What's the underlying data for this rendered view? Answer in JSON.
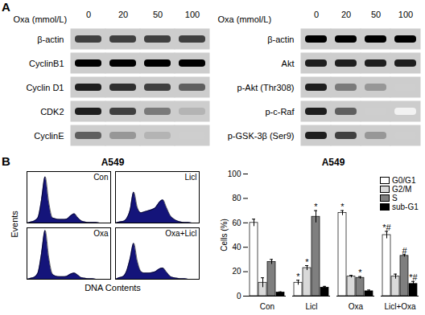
{
  "panel_labels": [
    "A",
    "B"
  ],
  "blots": [
    {
      "header": "Oxa (mmol/L)",
      "lanes": [
        0,
        20,
        50,
        100
      ],
      "rows": [
        {
          "label": "β-actin",
          "intensity": [
            0.8,
            0.8,
            0.8,
            0.8
          ]
        },
        {
          "label": "CyclinB1",
          "intensity": [
            1,
            1,
            1,
            1
          ]
        },
        {
          "label": "Cyclin D1",
          "intensity": [
            0.9,
            0.85,
            0.8,
            0.7
          ]
        },
        {
          "label": "CDK2",
          "intensity": [
            0.9,
            0.8,
            0.6,
            0.4
          ]
        },
        {
          "label": "CyclinE",
          "intensity": [
            0.7,
            0.5,
            0.4,
            0.3
          ]
        }
      ]
    },
    {
      "header": "Oxa (mmol/L)",
      "lanes": [
        0,
        20,
        50,
        100
      ],
      "rows": [
        {
          "label": "β-actin",
          "intensity": [
            1,
            1,
            1,
            1
          ]
        },
        {
          "label": "Akt",
          "intensity": [
            0.9,
            0.9,
            0.9,
            0.9
          ]
        },
        {
          "label": "p-Akt (Thr308)",
          "intensity": [
            0.9,
            0.6,
            0.5,
            0.3
          ]
        },
        {
          "label": "p-c-Raf",
          "intensity": [
            0.9,
            0.7,
            0.3,
            0.1
          ]
        },
        {
          "label": "p-GSK-3β (Ser9)",
          "intensity": [
            0.9,
            0.8,
            0.5,
            0.3
          ]
        }
      ]
    }
  ],
  "flow": {
    "title": "A549",
    "xlabel": "DNA Contents",
    "ylabel": "Events",
    "tick_labels": false,
    "ylim": [
      0,
      100
    ],
    "histograms": [
      {
        "name": "Con",
        "values": [
          0,
          2,
          4,
          10,
          45,
          90,
          40,
          10,
          8,
          7,
          7,
          8,
          14,
          18,
          10,
          4,
          2,
          1,
          1,
          1,
          0,
          0,
          0,
          0
        ]
      },
      {
        "name": "Licl",
        "values": [
          0,
          2,
          3,
          8,
          25,
          60,
          30,
          20,
          22,
          24,
          26,
          30,
          40,
          45,
          30,
          15,
          8,
          4,
          2,
          1,
          1,
          0,
          0,
          0
        ]
      },
      {
        "name": "Oxa",
        "values": [
          0,
          2,
          4,
          12,
          50,
          95,
          42,
          10,
          6,
          5,
          5,
          6,
          10,
          12,
          8,
          3,
          2,
          1,
          1,
          0,
          0,
          0,
          0,
          0
        ]
      },
      {
        "name": "Oxa+Licl",
        "values": [
          0,
          3,
          5,
          15,
          40,
          70,
          35,
          15,
          12,
          12,
          13,
          15,
          20,
          22,
          14,
          6,
          3,
          2,
          1,
          1,
          0,
          0,
          0,
          0
        ]
      }
    ]
  },
  "chart_data": {
    "type": "bar",
    "title": "A549",
    "ylabel": "Cells (%)",
    "categories": [
      "Con",
      "Licl",
      "Oxa",
      "Licl+Oxa"
    ],
    "ylim": [
      0,
      100
    ],
    "yticks": [
      0,
      20,
      40,
      60,
      80,
      100
    ],
    "legend": "top-right",
    "series": [
      {
        "name": "G0/G1",
        "color": "#ffffff",
        "values": [
          60,
          11,
          68,
          50
        ],
        "errors": [
          3,
          2,
          2,
          3
        ],
        "annotations": [
          null,
          "*",
          "*",
          "*#"
        ]
      },
      {
        "name": "G2/M",
        "color": "#d9d9d9",
        "values": [
          11,
          23,
          16,
          16
        ],
        "errors": [
          4,
          2,
          1,
          2
        ],
        "annotations": [
          null,
          "*",
          null,
          null
        ]
      },
      {
        "name": "S",
        "color": "#7f7f7f",
        "values": [
          28,
          65,
          15,
          33
        ],
        "errors": [
          2,
          5,
          1,
          1
        ],
        "annotations": [
          null,
          "*",
          "*",
          "#"
        ]
      },
      {
        "name": "sub-G1",
        "color": "#000000",
        "values": [
          3,
          7,
          4,
          10
        ],
        "errors": [
          0.5,
          1,
          1,
          2
        ],
        "annotations": [
          null,
          null,
          null,
          "*#"
        ]
      }
    ]
  }
}
